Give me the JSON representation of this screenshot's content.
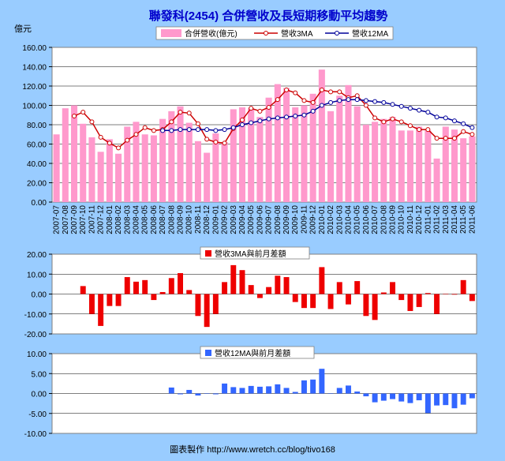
{
  "title": "聯發科(2454) 合併營收及長短期移動平均趨勢",
  "footer": "圖表製作   http://www.wretch.cc/blog/tivo168",
  "colors": {
    "bg": "#99ccff",
    "bar_main": "#ff99cc",
    "line3": "#cc0000",
    "line12": "#000099",
    "bar_diff3": "#ee0000",
    "bar_diff12": "#3366ff"
  },
  "chart_data": [
    {
      "type": "bar",
      "ylabel": "億元",
      "ylim": [
        0,
        160
      ],
      "yticks": [
        "0.00",
        "20.00",
        "40.00",
        "60.00",
        "80.00",
        "100.00",
        "120.00",
        "140.00",
        "160.00"
      ],
      "legend": [
        "合併營收(億元)",
        "營收3MA",
        "營收12MA"
      ],
      "categories": [
        "2007-07",
        "2007-08",
        "2007-09",
        "2007-10",
        "2007-11",
        "2007-12",
        "2008-01",
        "2008-02",
        "2008-03",
        "2008-04",
        "2008-05",
        "2008-06",
        "2008-07",
        "2008-08",
        "2008-09",
        "2008-10",
        "2008-11",
        "2008-12",
        "2009-01",
        "2009-02",
        "2009-03",
        "2009-04",
        "2009-05",
        "2009-06",
        "2009-07",
        "2009-08",
        "2009-09",
        "2009-10",
        "2009-11",
        "2009-12",
        "2010-01",
        "2010-02",
        "2010-03",
        "2010-04",
        "2010-05",
        "2010-06",
        "2010-07",
        "2010-08",
        "2010-09",
        "2010-10",
        "2010-11",
        "2010-12",
        "2011-01",
        "2011-02",
        "2011-03",
        "2011-04",
        "2011-05",
        "2011-06"
      ],
      "series": [
        {
          "name": "合併營收(億元)",
          "values": [
            70,
            97,
            100,
            81,
            67,
            52,
            65,
            50,
            78,
            83,
            70,
            69,
            86,
            94,
            99,
            82,
            63,
            51,
            71,
            62,
            96,
            98,
            97,
            88,
            108,
            122,
            118,
            98,
            100,
            112,
            137,
            94,
            110,
            121,
            99,
            80,
            83,
            86,
            88,
            74,
            74,
            78,
            74,
            45,
            78,
            75,
            66,
            68
          ]
        },
        {
          "name": "營收3MA",
          "values": [
            null,
            null,
            89,
            93,
            83,
            67,
            61,
            56,
            64,
            70,
            77,
            74,
            75,
            83,
            93,
            92,
            81,
            65,
            62,
            61,
            76,
            85,
            97,
            94,
            98,
            106,
            116,
            113,
            105,
            103,
            116,
            114,
            114,
            108,
            110,
            100,
            87,
            83,
            86,
            83,
            79,
            75,
            75,
            66,
            66,
            66,
            73,
            70
          ]
        },
        {
          "name": "營收12MA",
          "values": [
            null,
            null,
            null,
            null,
            null,
            null,
            null,
            null,
            null,
            null,
            null,
            null,
            74,
            74,
            75,
            75,
            75,
            75,
            74,
            75,
            77,
            80,
            82,
            84,
            86,
            87,
            88,
            89,
            90,
            94,
            100,
            103,
            105,
            106,
            106,
            105,
            104,
            103,
            101,
            99,
            97,
            95,
            93,
            88,
            87,
            84,
            81,
            77
          ]
        }
      ]
    },
    {
      "type": "bar",
      "ylim": [
        -20,
        20
      ],
      "yticks": [
        "-20.00",
        "-10.00",
        "0.00",
        "10.00",
        "20.00"
      ],
      "legend": [
        "營收3MA與前月差額"
      ],
      "series": [
        {
          "name": "營收3MA與前月差額",
          "values": [
            null,
            null,
            null,
            4,
            -10,
            -16,
            -6,
            -6,
            8.5,
            6.2,
            7,
            -3,
            1,
            8,
            10.5,
            2,
            -11,
            -16.5,
            -10,
            6,
            14.5,
            12,
            4.5,
            -2,
            3.5,
            9.2,
            8.5,
            -4,
            -7,
            -7,
            13.5,
            -7.5,
            6,
            -5.2,
            6.5,
            -11,
            -13,
            0.8,
            6,
            -3,
            -8.5,
            -6.5,
            0.5,
            -10,
            0,
            -0.3,
            7,
            -3.5
          ]
        }
      ]
    },
    {
      "type": "bar",
      "ylim": [
        -10,
        10
      ],
      "yticks": [
        "-10.00",
        "-5.00",
        "0.00",
        "5.00",
        "10.00"
      ],
      "legend": [
        "營收12MA與前月差額"
      ],
      "series": [
        {
          "name": "營收12MA與前月差額",
          "values": [
            null,
            null,
            null,
            null,
            null,
            null,
            null,
            null,
            null,
            null,
            null,
            null,
            null,
            1.5,
            -0.2,
            0.9,
            -0.5,
            0,
            -0.2,
            2.5,
            1.6,
            1.4,
            1.9,
            1.7,
            1.8,
            2.3,
            1.4,
            0.4,
            3.3,
            3.5,
            6.2,
            0,
            1.4,
            2,
            0.5,
            -0.7,
            -2.2,
            -1.8,
            -1.4,
            -2,
            -2.4,
            -1.7,
            -4.9,
            -3,
            -2.9,
            -3.7,
            -2.8,
            -1.2
          ]
        }
      ]
    }
  ]
}
